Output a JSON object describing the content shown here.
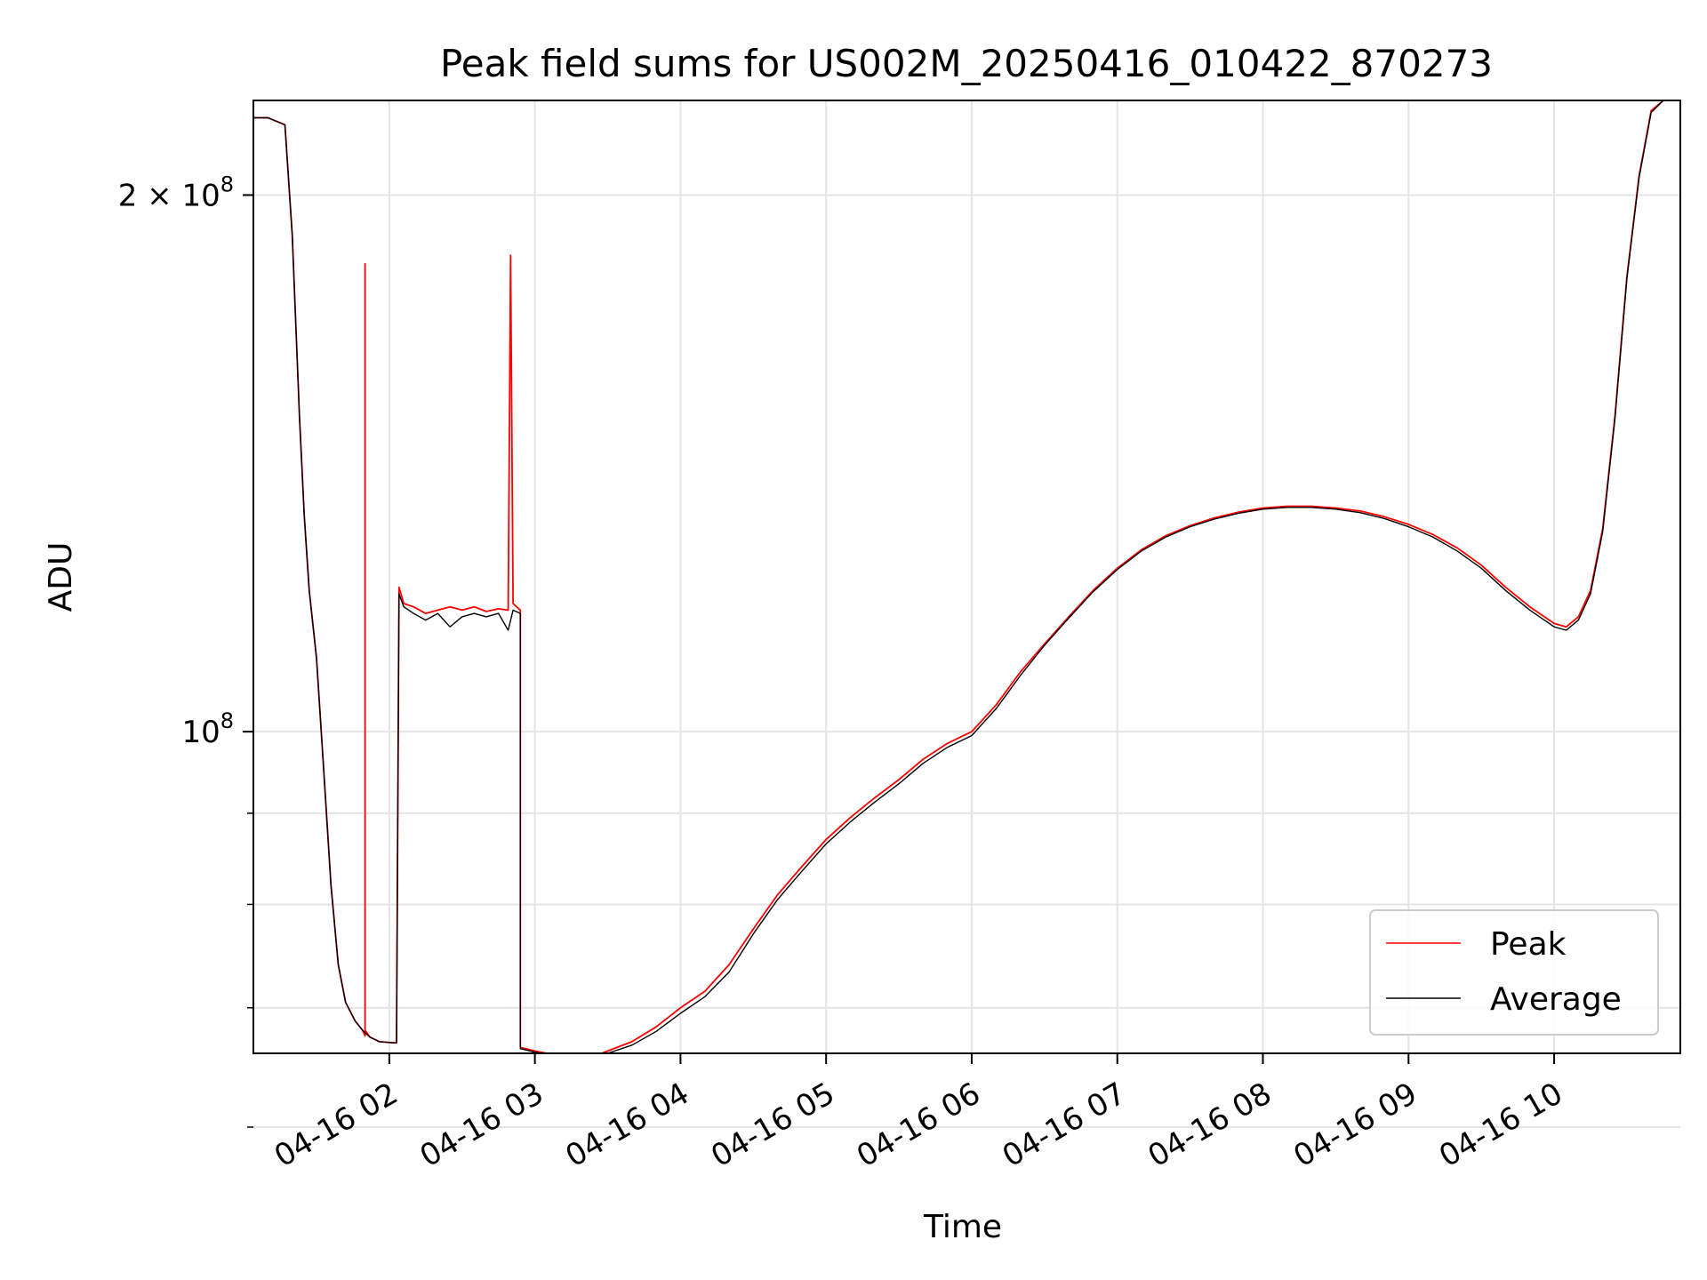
{
  "chart_data": {
    "type": "line",
    "title": "Peak field sums for US002M_20250416_010422_870273",
    "xlabel": "Time",
    "ylabel": "ADU",
    "yscale": "log",
    "grid": true,
    "legend_position": "lower-right",
    "x_ticks": [
      "04-16 02",
      "04-16 03",
      "04-16 04",
      "04-16 05",
      "04-16 06",
      "04-16 07",
      "04-16 08",
      "04-16 09",
      "04-16 10"
    ],
    "y_ticks": [
      {
        "value": 200000000,
        "label_base": "2 × 10",
        "label_exp": "8"
      },
      {
        "value": 100000000,
        "label_base": "10",
        "label_exp": "8"
      }
    ],
    "y_minor_ticks": [
      90000000,
      80000000,
      70000000,
      60000000
    ],
    "ylim": [
      66000000,
      226000000
    ],
    "xlim": [
      "2025-04-16 01:04",
      "2025-04-16 10:52"
    ],
    "series": [
      {
        "name": "Peak",
        "color": "#ff0000",
        "points": [
          [
            "01:04",
            221000000
          ],
          [
            "01:10",
            221000000
          ],
          [
            "01:17",
            219000000
          ],
          [
            "01:20",
            190000000
          ],
          [
            "01:23",
            150000000
          ],
          [
            "01:25",
            132000000
          ],
          [
            "01:27",
            120000000
          ],
          [
            "01:30",
            110000000
          ],
          [
            "01:33",
            95000000
          ],
          [
            "01:36",
            82000000
          ],
          [
            "01:39",
            74000000
          ],
          [
            "01:42",
            70500000
          ],
          [
            "01:46",
            68800000
          ],
          [
            "01:49",
            68000000
          ],
          [
            "01:50",
            67500000
          ],
          [
            "01:50",
            183000000
          ],
          [
            "01:50",
            68000000
          ],
          [
            "01:52",
            67400000
          ],
          [
            "01:56",
            67000000
          ],
          [
            "02:02",
            66900000
          ],
          [
            "02:03",
            66900000
          ],
          [
            "02:04",
            120500000
          ],
          [
            "02:06",
            118000000
          ],
          [
            "02:10",
            117500000
          ],
          [
            "02:15",
            116500000
          ],
          [
            "02:20",
            117000000
          ],
          [
            "02:25",
            117500000
          ],
          [
            "02:30",
            117000000
          ],
          [
            "02:35",
            117500000
          ],
          [
            "02:40",
            116800000
          ],
          [
            "02:45",
            117200000
          ],
          [
            "02:49",
            117000000
          ],
          [
            "02:50",
            185000000
          ],
          [
            "02:51",
            118000000
          ],
          [
            "02:54",
            117000000
          ],
          [
            "02:54",
            66500000
          ],
          [
            "03:00",
            66200000
          ],
          [
            "03:05",
            66000000
          ],
          [
            "03:10",
            66000000
          ],
          [
            "03:15",
            65800000
          ],
          [
            "03:20",
            65700000
          ],
          [
            "03:25",
            65800000
          ],
          [
            "03:30",
            66200000
          ],
          [
            "03:40",
            67000000
          ],
          [
            "03:50",
            68300000
          ],
          [
            "04:00",
            70000000
          ],
          [
            "04:10",
            71500000
          ],
          [
            "04:20",
            74000000
          ],
          [
            "04:30",
            77500000
          ],
          [
            "04:40",
            81000000
          ],
          [
            "04:50",
            84000000
          ],
          [
            "05:00",
            87000000
          ],
          [
            "05:10",
            89500000
          ],
          [
            "05:20",
            91800000
          ],
          [
            "05:30",
            94000000
          ],
          [
            "05:40",
            96500000
          ],
          [
            "05:50",
            98500000
          ],
          [
            "06:00",
            100000000
          ],
          [
            "06:10",
            103500000
          ],
          [
            "06:20",
            108000000
          ],
          [
            "06:30",
            112000000
          ],
          [
            "06:40",
            116000000
          ],
          [
            "06:50",
            120000000
          ],
          [
            "07:00",
            123500000
          ],
          [
            "07:10",
            126500000
          ],
          [
            "07:20",
            128800000
          ],
          [
            "07:30",
            130500000
          ],
          [
            "07:40",
            131800000
          ],
          [
            "07:50",
            132800000
          ],
          [
            "08:00",
            133500000
          ],
          [
            "08:10",
            133800000
          ],
          [
            "08:20",
            133800000
          ],
          [
            "08:30",
            133500000
          ],
          [
            "08:40",
            133000000
          ],
          [
            "08:50",
            132000000
          ],
          [
            "09:00",
            130700000
          ],
          [
            "09:10",
            129000000
          ],
          [
            "09:20",
            126800000
          ],
          [
            "09:30",
            124000000
          ],
          [
            "09:40",
            120500000
          ],
          [
            "09:50",
            117500000
          ],
          [
            "10:00",
            115000000
          ],
          [
            "10:05",
            114500000
          ],
          [
            "10:10",
            116000000
          ],
          [
            "10:15",
            120000000
          ],
          [
            "10:20",
            130000000
          ],
          [
            "10:25",
            150000000
          ],
          [
            "10:30",
            180000000
          ],
          [
            "10:35",
            205000000
          ],
          [
            "10:40",
            223000000
          ],
          [
            "10:45",
            226000000
          ],
          [
            "10:52",
            226000000
          ]
        ]
      },
      {
        "name": "Average",
        "color": "#000000",
        "points": [
          [
            "01:04",
            221000000
          ],
          [
            "01:10",
            221000000
          ],
          [
            "01:17",
            219000000
          ],
          [
            "01:20",
            190000000
          ],
          [
            "01:23",
            150000000
          ],
          [
            "01:25",
            132000000
          ],
          [
            "01:27",
            120000000
          ],
          [
            "01:30",
            110000000
          ],
          [
            "01:33",
            95000000
          ],
          [
            "01:36",
            82000000
          ],
          [
            "01:39",
            74000000
          ],
          [
            "01:42",
            70500000
          ],
          [
            "01:46",
            68800000
          ],
          [
            "01:49",
            68000000
          ],
          [
            "01:52",
            67400000
          ],
          [
            "01:56",
            67000000
          ],
          [
            "02:02",
            66900000
          ],
          [
            "02:03",
            66900000
          ],
          [
            "02:04",
            119500000
          ],
          [
            "02:06",
            117500000
          ],
          [
            "02:10",
            116500000
          ],
          [
            "02:15",
            115500000
          ],
          [
            "02:20",
            116500000
          ],
          [
            "02:25",
            114500000
          ],
          [
            "02:30",
            116000000
          ],
          [
            "02:35",
            116500000
          ],
          [
            "02:40",
            116000000
          ],
          [
            "02:45",
            116500000
          ],
          [
            "02:49",
            114000000
          ],
          [
            "02:51",
            117000000
          ],
          [
            "02:54",
            116500000
          ],
          [
            "02:54",
            66400000
          ],
          [
            "03:00",
            66100000
          ],
          [
            "03:05",
            65900000
          ],
          [
            "03:10",
            65900000
          ],
          [
            "03:15",
            65700000
          ],
          [
            "03:20",
            65600000
          ],
          [
            "03:25",
            65700000
          ],
          [
            "03:30",
            66000000
          ],
          [
            "03:40",
            66700000
          ],
          [
            "03:50",
            67900000
          ],
          [
            "04:00",
            69500000
          ],
          [
            "04:10",
            71000000
          ],
          [
            "04:20",
            73300000
          ],
          [
            "04:30",
            77000000
          ],
          [
            "04:40",
            80500000
          ],
          [
            "04:50",
            83500000
          ],
          [
            "05:00",
            86500000
          ],
          [
            "05:10",
            89000000
          ],
          [
            "05:20",
            91300000
          ],
          [
            "05:30",
            93500000
          ],
          [
            "05:40",
            96000000
          ],
          [
            "05:50",
            98000000
          ],
          [
            "06:00",
            99500000
          ],
          [
            "06:10",
            103000000
          ],
          [
            "06:20",
            107500000
          ],
          [
            "06:30",
            111800000
          ],
          [
            "06:40",
            115800000
          ],
          [
            "06:50",
            119800000
          ],
          [
            "07:00",
            123300000
          ],
          [
            "07:10",
            126300000
          ],
          [
            "07:20",
            128600000
          ],
          [
            "07:30",
            130300000
          ],
          [
            "07:40",
            131600000
          ],
          [
            "07:50",
            132600000
          ],
          [
            "08:00",
            133300000
          ],
          [
            "08:10",
            133600000
          ],
          [
            "08:20",
            133600000
          ],
          [
            "08:30",
            133300000
          ],
          [
            "08:40",
            132700000
          ],
          [
            "08:50",
            131700000
          ],
          [
            "09:00",
            130300000
          ],
          [
            "09:10",
            128600000
          ],
          [
            "09:20",
            126300000
          ],
          [
            "09:30",
            123500000
          ],
          [
            "09:40",
            120000000
          ],
          [
            "09:50",
            117000000
          ],
          [
            "10:00",
            114500000
          ],
          [
            "10:05",
            114000000
          ],
          [
            "10:10",
            115500000
          ],
          [
            "10:15",
            119500000
          ],
          [
            "10:20",
            129500000
          ],
          [
            "10:25",
            149500000
          ],
          [
            "10:30",
            179500000
          ],
          [
            "10:35",
            204500000
          ],
          [
            "10:40",
            222500000
          ],
          [
            "10:45",
            226000000
          ],
          [
            "10:52",
            226000000
          ]
        ]
      }
    ]
  }
}
